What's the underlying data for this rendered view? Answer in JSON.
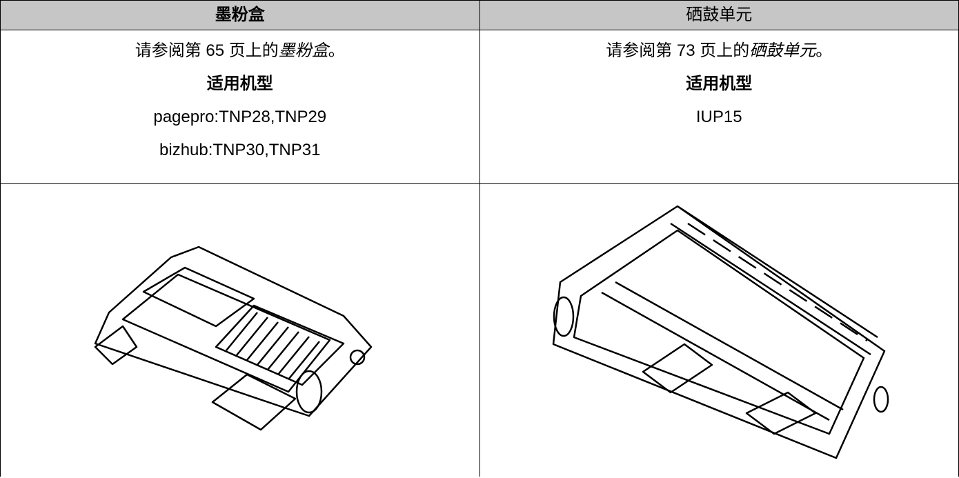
{
  "table": {
    "header": [
      "墨粉盒",
      "硒鼓单元"
    ],
    "cells": [
      {
        "ref_prefix": "请参阅第 65 页上的",
        "ref_italic": "墨粉盒",
        "ref_suffix": "。",
        "models_title": "适用机型",
        "models": [
          "pagepro:TNP28,TNP29",
          "bizhub:TNP30,TNP31"
        ]
      },
      {
        "ref_prefix": "请参阅第 73 页上的",
        "ref_italic": "硒鼓单元",
        "ref_suffix": "。",
        "models_title": "适用机型",
        "models": [
          "IUP15"
        ]
      }
    ]
  }
}
